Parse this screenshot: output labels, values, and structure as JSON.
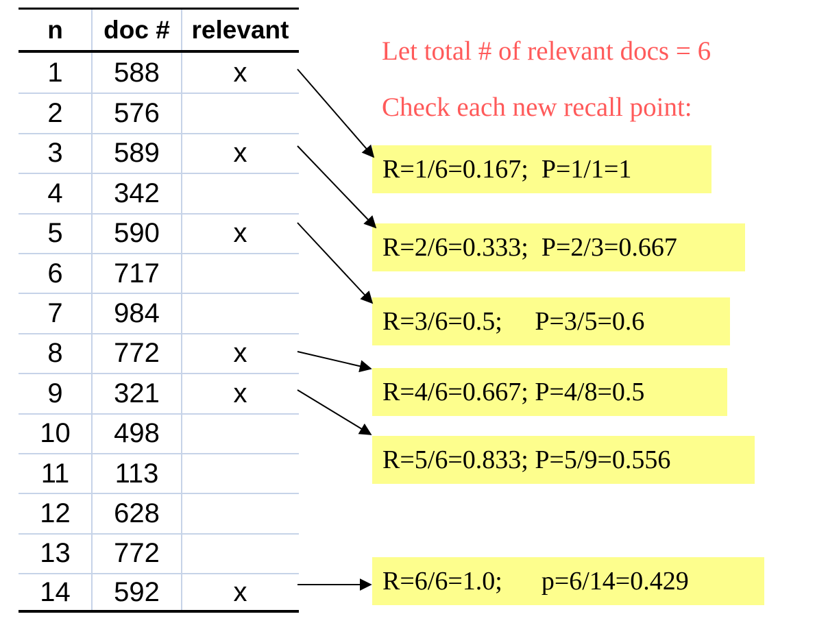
{
  "table": {
    "headers": {
      "n": "n",
      "doc": "doc #",
      "relevant": "relevant"
    },
    "rows": [
      {
        "n": "1",
        "doc": "588",
        "relevant": "x"
      },
      {
        "n": "2",
        "doc": "576",
        "relevant": ""
      },
      {
        "n": "3",
        "doc": "589",
        "relevant": "x"
      },
      {
        "n": "4",
        "doc": "342",
        "relevant": ""
      },
      {
        "n": "5",
        "doc": "590",
        "relevant": "x"
      },
      {
        "n": "6",
        "doc": "717",
        "relevant": ""
      },
      {
        "n": "7",
        "doc": "984",
        "relevant": ""
      },
      {
        "n": "8",
        "doc": "772",
        "relevant": "x"
      },
      {
        "n": "9",
        "doc": "321",
        "relevant": "x"
      },
      {
        "n": "10",
        "doc": "498",
        "relevant": ""
      },
      {
        "n": "11",
        "doc": "113",
        "relevant": ""
      },
      {
        "n": "12",
        "doc": "628",
        "relevant": ""
      },
      {
        "n": "13",
        "doc": "772",
        "relevant": ""
      },
      {
        "n": "14",
        "doc": "592",
        "relevant": "x"
      }
    ]
  },
  "notes": {
    "total": "Let total # of relevant docs = 6",
    "check": "Check each new recall point:"
  },
  "recall_points": [
    {
      "text": "R=1/6=0.167;  P=1/1=1"
    },
    {
      "text": "R=2/6=0.333;  P=2/3=0.667"
    },
    {
      "text": "R=3/6=0.5;     P=3/5=0.6"
    },
    {
      "text": "R=4/6=0.667; P=4/8=0.5"
    },
    {
      "text": "R=5/6=0.833; P=5/9=0.556"
    },
    {
      "text": "R=6/6=1.0;      p=6/14=0.429"
    }
  ],
  "colors": {
    "note_text": "#ff5a5a",
    "highlight": "#fdfe8d",
    "grid": "#c6d3e8"
  }
}
